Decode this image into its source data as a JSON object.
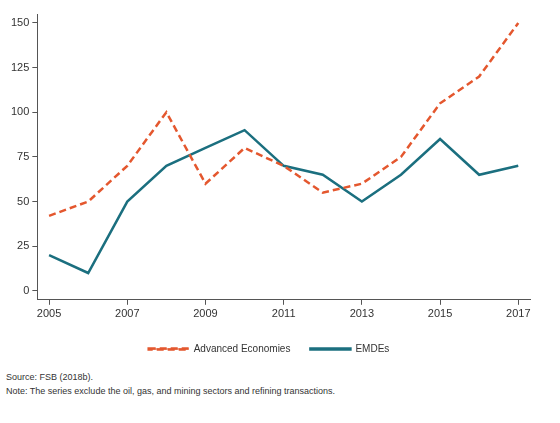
{
  "chart_data": {
    "type": "line",
    "x": [
      2005,
      2006,
      2007,
      2008,
      2009,
      2010,
      2011,
      2012,
      2013,
      2014,
      2015,
      2016,
      2017
    ],
    "series": [
      {
        "name": "Advanced Economies",
        "color": "#e4572e",
        "line_style": "dashed",
        "values": [
          42,
          50,
          70,
          100,
          60,
          80,
          70,
          55,
          60,
          75,
          105,
          120,
          150
        ]
      },
      {
        "name": "EMDEs",
        "color": "#1b6f7f",
        "line_style": "solid",
        "values": [
          20,
          10,
          50,
          70,
          80,
          90,
          70,
          65,
          50,
          65,
          85,
          65,
          70
        ]
      }
    ],
    "xlim": [
      2004.7,
      2017.3
    ],
    "xticks": [
      2005,
      2007,
      2009,
      2011,
      2013,
      2015,
      2017
    ],
    "ylim": [
      -5,
      155
    ],
    "yticks": [
      0,
      25,
      50,
      75,
      100,
      125,
      150
    ],
    "grid": false,
    "legend": "bottom",
    "annotations": [
      "Source: FSB (2018b).",
      "Note: The series exclude the oil, gas, and mining sectors and refining transactions."
    ]
  }
}
